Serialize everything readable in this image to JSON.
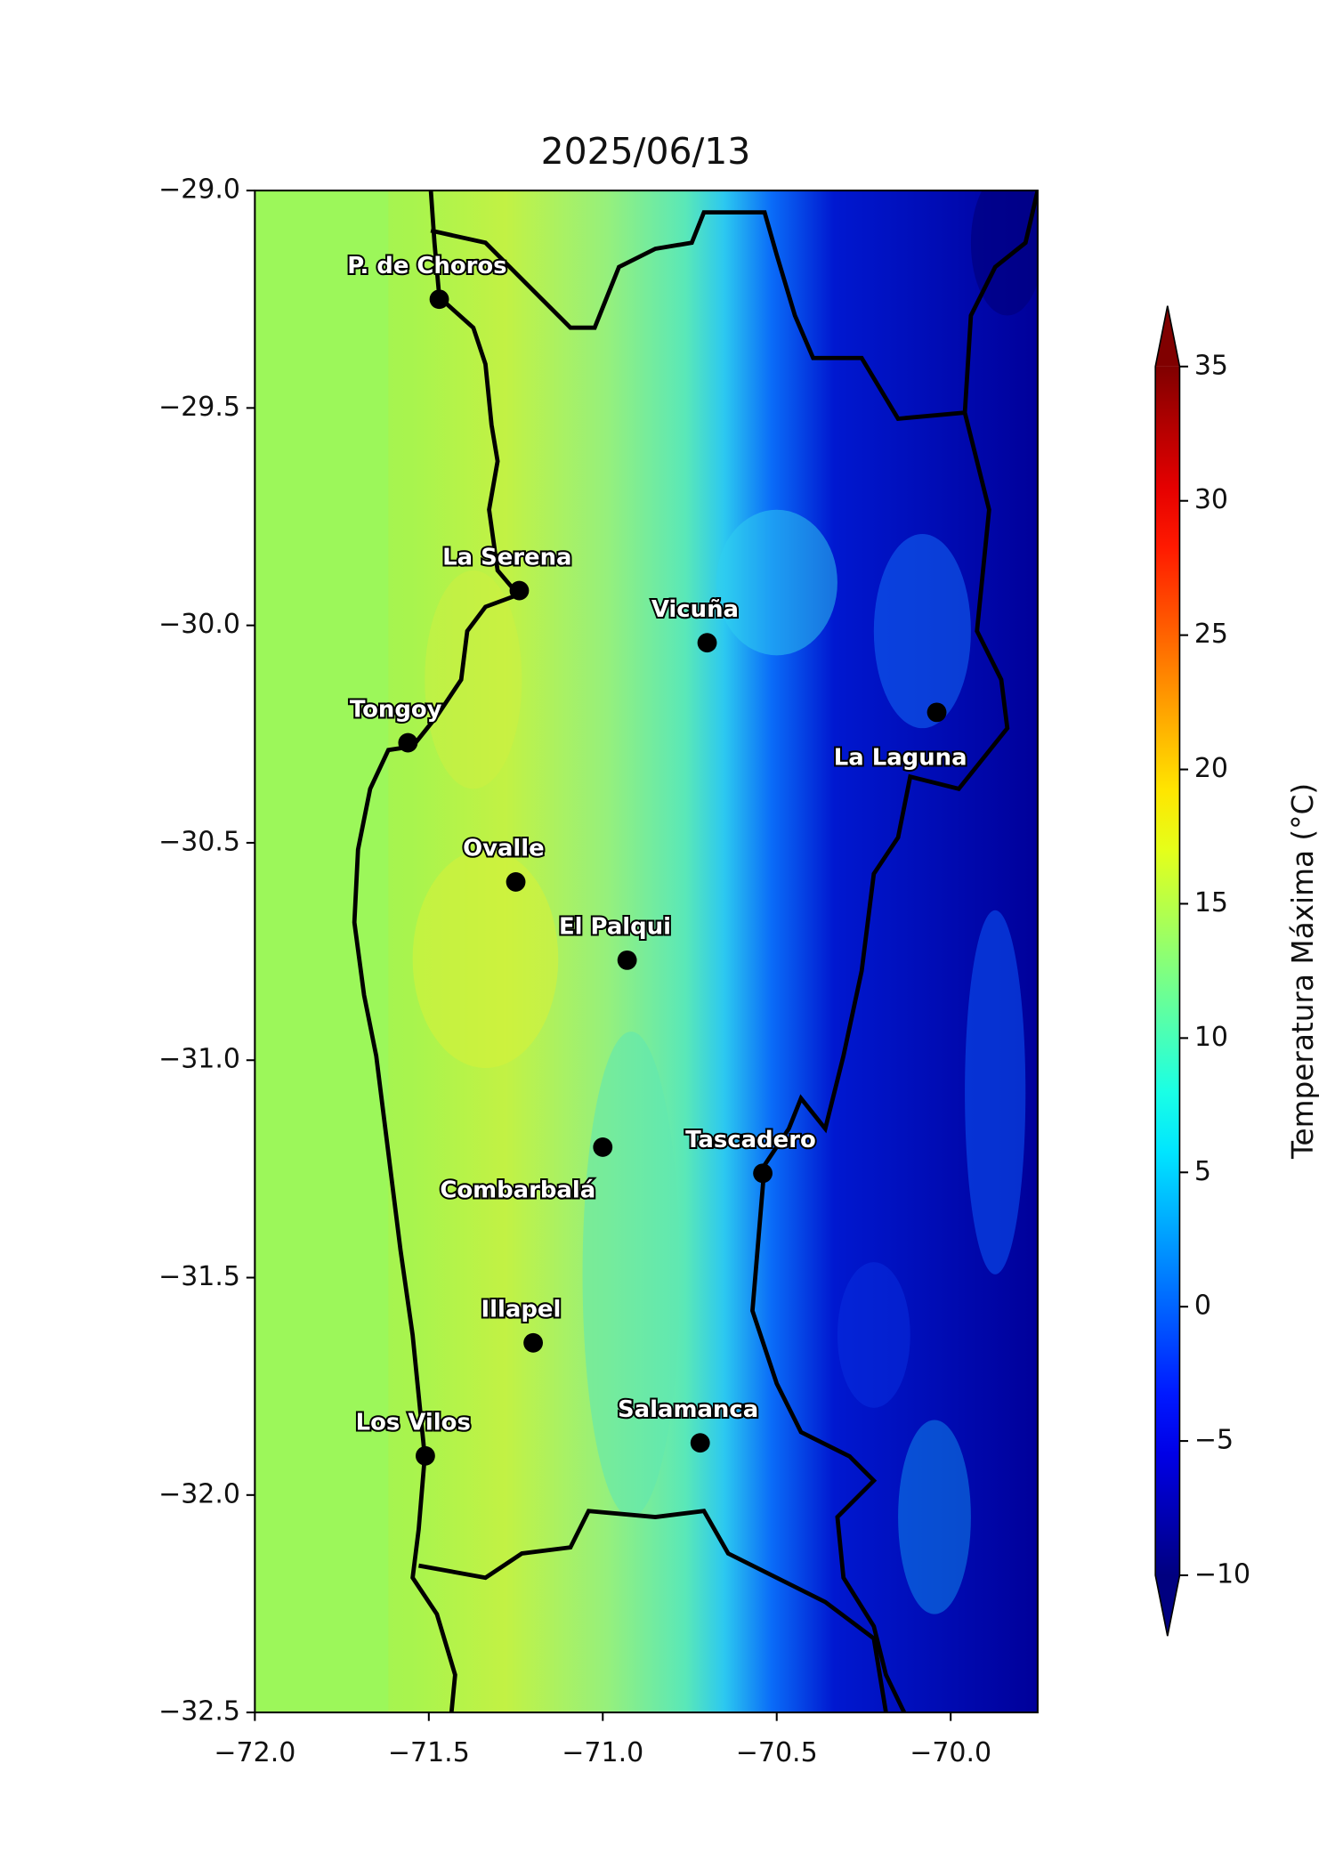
{
  "map": {
    "type": "map",
    "title": "2025/06/13",
    "xlim": [
      -72,
      -69.75
    ],
    "ylim": [
      -32.5,
      -29
    ],
    "xticks": [
      {
        "value": -72,
        "label": "−72.0"
      },
      {
        "value": -71.5,
        "label": "−71.5"
      },
      {
        "value": -71,
        "label": "−71.0"
      },
      {
        "value": -70.5,
        "label": "−70.5"
      },
      {
        "value": -70,
        "label": "−70.0"
      }
    ],
    "yticks": [
      {
        "value": -29,
        "label": "−29.0"
      },
      {
        "value": -29.5,
        "label": "−29.5"
      },
      {
        "value": -30,
        "label": "−30.0"
      },
      {
        "value": -30.5,
        "label": "−30.5"
      },
      {
        "value": -31,
        "label": "−31.0"
      },
      {
        "value": -31.5,
        "label": "−31.5"
      },
      {
        "value": -32,
        "label": "−32.0"
      },
      {
        "value": -32.5,
        "label": "−32.5"
      }
    ],
    "cities": [
      {
        "name": "P. de Choros",
        "lon": -71.47,
        "lat": -29.25
      },
      {
        "name": "La Serena",
        "lon": -71.24,
        "lat": -29.92
      },
      {
        "name": "Vicuña",
        "lon": -70.7,
        "lat": -30.04
      },
      {
        "name": "La Laguna",
        "lon": -70.04,
        "lat": -30.2
      },
      {
        "name": "Tongoy",
        "lon": -71.56,
        "lat": -30.27
      },
      {
        "name": "Ovalle",
        "lon": -71.25,
        "lat": -30.59
      },
      {
        "name": "El Palqui",
        "lon": -70.93,
        "lat": -30.77
      },
      {
        "name": "Combarbalá",
        "lon": -71.0,
        "lat": -31.2
      },
      {
        "name": "Tascadero",
        "lon": -70.54,
        "lat": -31.26
      },
      {
        "name": "Illapel",
        "lon": -71.2,
        "lat": -31.65
      },
      {
        "name": "Los Vilos",
        "lon": -71.51,
        "lat": -31.91
      },
      {
        "name": "Salamanca",
        "lon": -70.72,
        "lat": -31.88
      }
    ],
    "colorbar": {
      "label": "Temperatura Máxima (°C)",
      "colormap": "jet",
      "lim": [
        -10,
        35
      ],
      "extend": "both",
      "ticks": [
        {
          "value": -10,
          "label": "−10"
        },
        {
          "value": -5,
          "label": "−5"
        },
        0,
        5,
        10,
        15,
        20,
        25,
        30,
        35
      ]
    }
  }
}
